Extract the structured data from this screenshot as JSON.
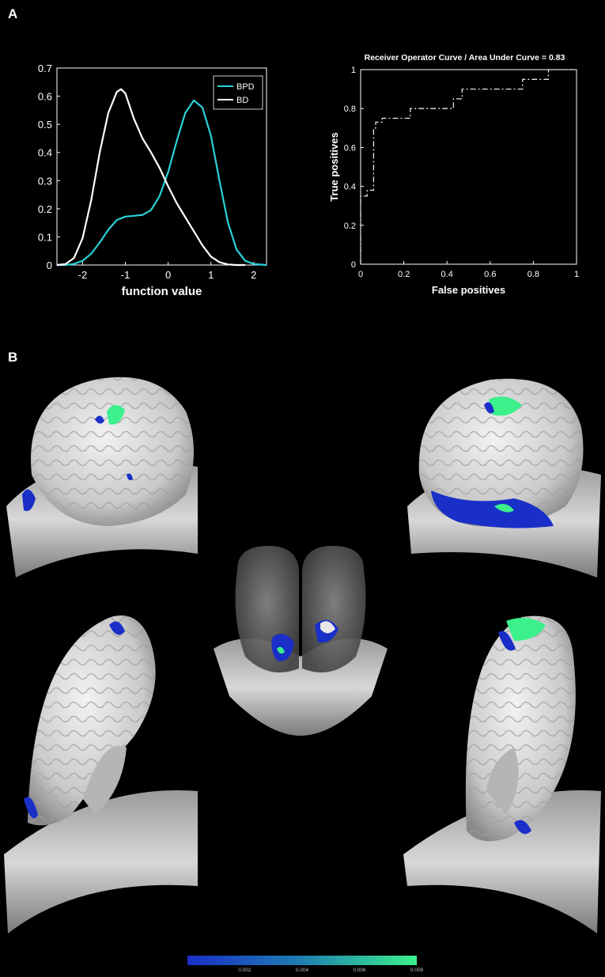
{
  "panels": {
    "a": "A",
    "b": "B"
  },
  "colors": {
    "background": "#000000",
    "bpd": "#2ad2d8",
    "bd": "#ffffff",
    "roc": "#e6e6e6",
    "brain": "#dcdcdc",
    "activation_low": "#1a2fc8",
    "activation_high": "#3cf08c"
  },
  "chart_data": [
    {
      "type": "line",
      "subtype": "density",
      "title": "",
      "xlabel": "function value",
      "ylabel": "",
      "xlim": [
        -2.6,
        2.3
      ],
      "ylim": [
        0,
        0.7
      ],
      "xticks": [
        "-2",
        "-1",
        "0",
        "1",
        "2"
      ],
      "yticks": [
        "0",
        "0.1",
        "0.2",
        "0.3",
        "0.4",
        "0.5",
        "0.6",
        "0.7"
      ],
      "legend": {
        "position": "top-right",
        "entries": [
          "BPD",
          "BD"
        ]
      },
      "series": [
        {
          "name": "BPD",
          "x": [
            -2.6,
            -2.4,
            -2.2,
            -2.0,
            -1.8,
            -1.6,
            -1.4,
            -1.2,
            -1.0,
            -0.8,
            -0.6,
            -0.4,
            -0.2,
            0.0,
            0.2,
            0.4,
            0.6,
            0.8,
            1.0,
            1.2,
            1.4,
            1.6,
            1.8,
            2.0,
            2.2,
            2.3
          ],
          "y": [
            0.0,
            0.0,
            0.004,
            0.015,
            0.04,
            0.08,
            0.125,
            0.16,
            0.172,
            0.175,
            0.178,
            0.195,
            0.245,
            0.33,
            0.44,
            0.54,
            0.585,
            0.56,
            0.46,
            0.3,
            0.15,
            0.055,
            0.015,
            0.004,
            0.001,
            0.0
          ]
        },
        {
          "name": "BD",
          "x": [
            -2.6,
            -2.4,
            -2.2,
            -2.0,
            -1.8,
            -1.6,
            -1.4,
            -1.2,
            -1.1,
            -1.0,
            -0.8,
            -0.6,
            -0.4,
            -0.2,
            0.0,
            0.2,
            0.4,
            0.6,
            0.8,
            1.0,
            1.2,
            1.4,
            1.6,
            1.8
          ],
          "y": [
            0.0,
            0.003,
            0.025,
            0.095,
            0.23,
            0.4,
            0.54,
            0.615,
            0.625,
            0.61,
            0.52,
            0.45,
            0.4,
            0.345,
            0.28,
            0.22,
            0.17,
            0.12,
            0.07,
            0.03,
            0.01,
            0.002,
            0.0,
            0.0
          ]
        }
      ]
    },
    {
      "type": "line",
      "subtype": "roc",
      "title": "Receiver Operator Curve / Area Under Curve = 0.83",
      "xlabel": "False positives",
      "ylabel": "True positives",
      "xlim": [
        0,
        1
      ],
      "ylim": [
        0,
        1
      ],
      "xticks": [
        "0",
        "0.2",
        "0.4",
        "0.6",
        "0.8",
        "1"
      ],
      "yticks": [
        "0",
        "0.2",
        "0.4",
        "0.6",
        "0.8",
        "1"
      ],
      "series": [
        {
          "name": "",
          "x": [
            0,
            0,
            0.03,
            0.03,
            0.06,
            0.06,
            0.07,
            0.07,
            0.1,
            0.1,
            0.23,
            0.23,
            0.43,
            0.43,
            0.47,
            0.47,
            0.75,
            0.75,
            0.87,
            0.87,
            1.0
          ],
          "y": [
            0,
            0.35,
            0.35,
            0.38,
            0.38,
            0.7,
            0.7,
            0.73,
            0.73,
            0.75,
            0.75,
            0.8,
            0.8,
            0.85,
            0.85,
            0.9,
            0.9,
            0.95,
            0.95,
            1.0,
            1.0
          ]
        }
      ]
    },
    {
      "type": "colorbar",
      "range": [
        0,
        0.008
      ],
      "ticks": [
        "0.002",
        "0.004",
        "0.006",
        "0.008"
      ]
    }
  ]
}
